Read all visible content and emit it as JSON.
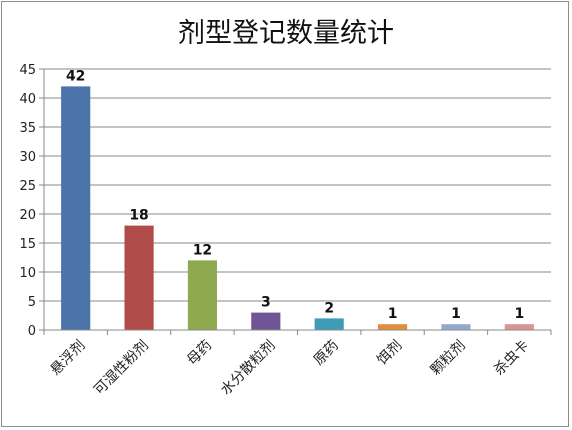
{
  "chart_data": {
    "type": "bar",
    "title": "剂型登记数量统计",
    "xlabel": "",
    "ylabel": "",
    "categories": [
      "悬浮剂",
      "可湿性粉剂",
      "母药",
      "水分散粒剂",
      "原药",
      "饵剂",
      "颗粒剂",
      "杀虫卡"
    ],
    "values": [
      42,
      18,
      12,
      3,
      2,
      1,
      1,
      1
    ],
    "data_labels": [
      "42",
      "18",
      "12",
      "3",
      "2",
      "1",
      "1",
      "1"
    ],
    "colors": [
      "#4a74aa",
      "#b14b4a",
      "#8ea94f",
      "#6e5595",
      "#3f9cb6",
      "#e18e3c",
      "#93a8cf",
      "#d79493"
    ],
    "ylim": [
      0,
      45
    ],
    "yticks": [
      "0",
      "5",
      "10",
      "15",
      "20",
      "25",
      "30",
      "35",
      "40",
      "45"
    ],
    "grid": true,
    "legend": "none"
  }
}
